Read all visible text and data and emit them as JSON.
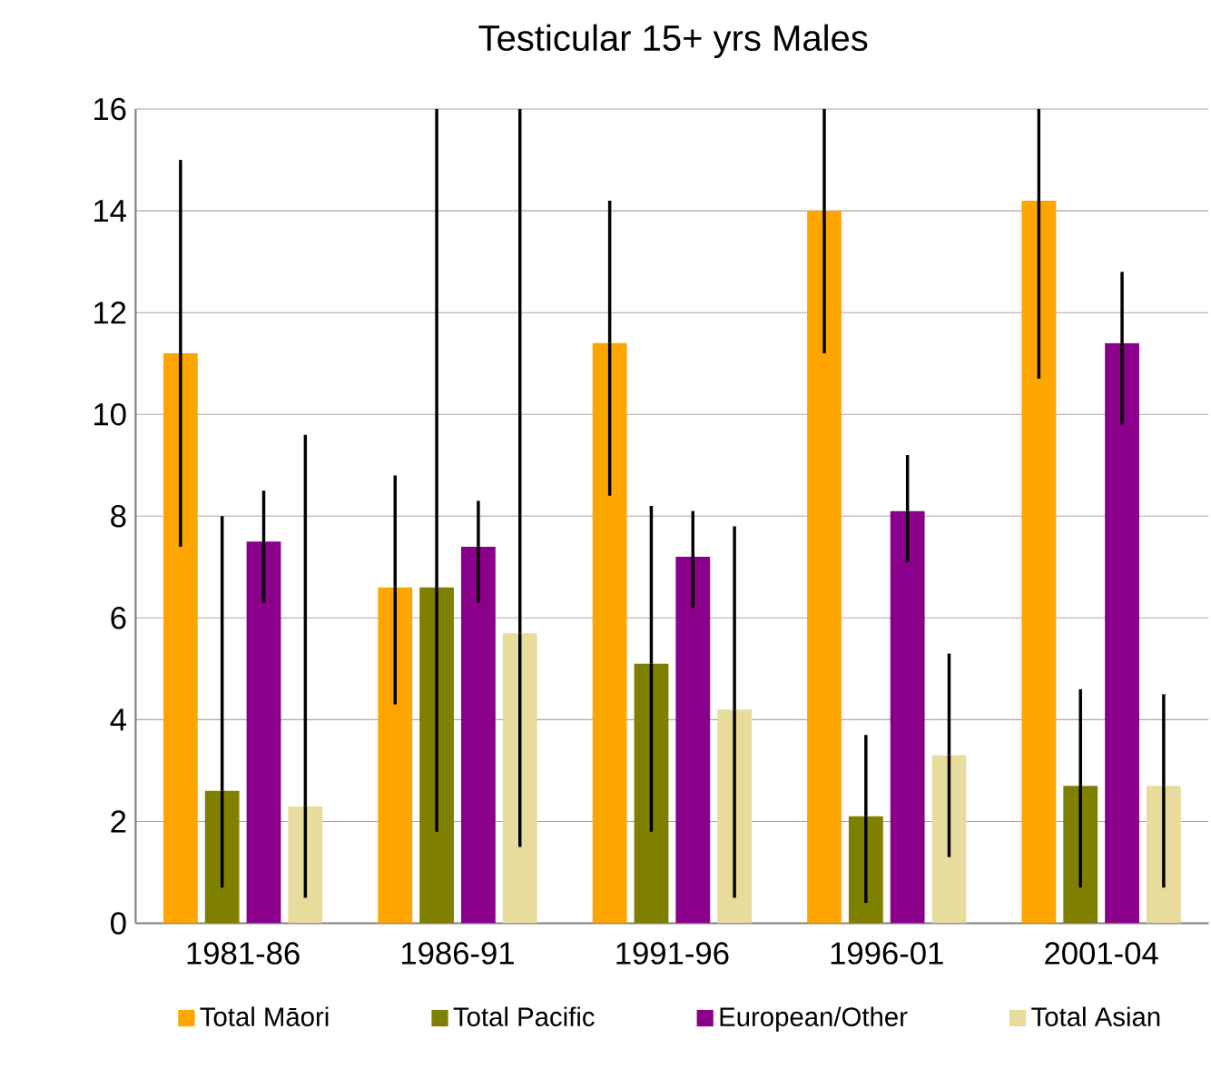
{
  "chart_data": {
    "type": "bar",
    "title": "Testicular   15+ yrs   Males",
    "categories": [
      "1981-86",
      "1986-91",
      "1991-96",
      "1996-01",
      "2001-04"
    ],
    "series": [
      {
        "name": "Total Māori",
        "color": "#ffa500",
        "values": [
          11.2,
          6.6,
          11.4,
          14.0,
          14.2
        ],
        "errors": [
          [
            7.4,
            15.0
          ],
          [
            4.3,
            8.8
          ],
          [
            8.4,
            14.2
          ],
          [
            11.2,
            16
          ],
          [
            10.7,
            16
          ]
        ]
      },
      {
        "name": "Total Pacific",
        "color": "#808000",
        "values": [
          2.6,
          6.6,
          5.1,
          2.1,
          2.7
        ],
        "errors": [
          [
            0.7,
            8.0
          ],
          [
            1.8,
            16
          ],
          [
            1.8,
            8.2
          ],
          [
            0.4,
            3.7
          ],
          [
            0.7,
            4.6
          ]
        ]
      },
      {
        "name": "European/Other",
        "color": "#8b008b",
        "values": [
          7.5,
          7.4,
          7.2,
          8.1,
          11.4
        ],
        "errors": [
          [
            6.3,
            8.5
          ],
          [
            6.3,
            8.3
          ],
          [
            6.2,
            8.1
          ],
          [
            7.1,
            9.2
          ],
          [
            9.8,
            12.8
          ]
        ]
      },
      {
        "name": "Total Asian",
        "color": "#e8dc9c",
        "values": [
          2.3,
          5.7,
          4.2,
          3.3,
          2.7
        ],
        "errors": [
          [
            0.5,
            9.6
          ],
          [
            1.5,
            16
          ],
          [
            0.5,
            7.8
          ],
          [
            1.3,
            5.3
          ],
          [
            0.7,
            4.5
          ]
        ]
      }
    ],
    "ylim": [
      0,
      16
    ],
    "yticks": [
      0,
      2,
      4,
      6,
      8,
      10,
      12,
      14,
      16
    ],
    "grid": "y",
    "legend": "bottom"
  }
}
